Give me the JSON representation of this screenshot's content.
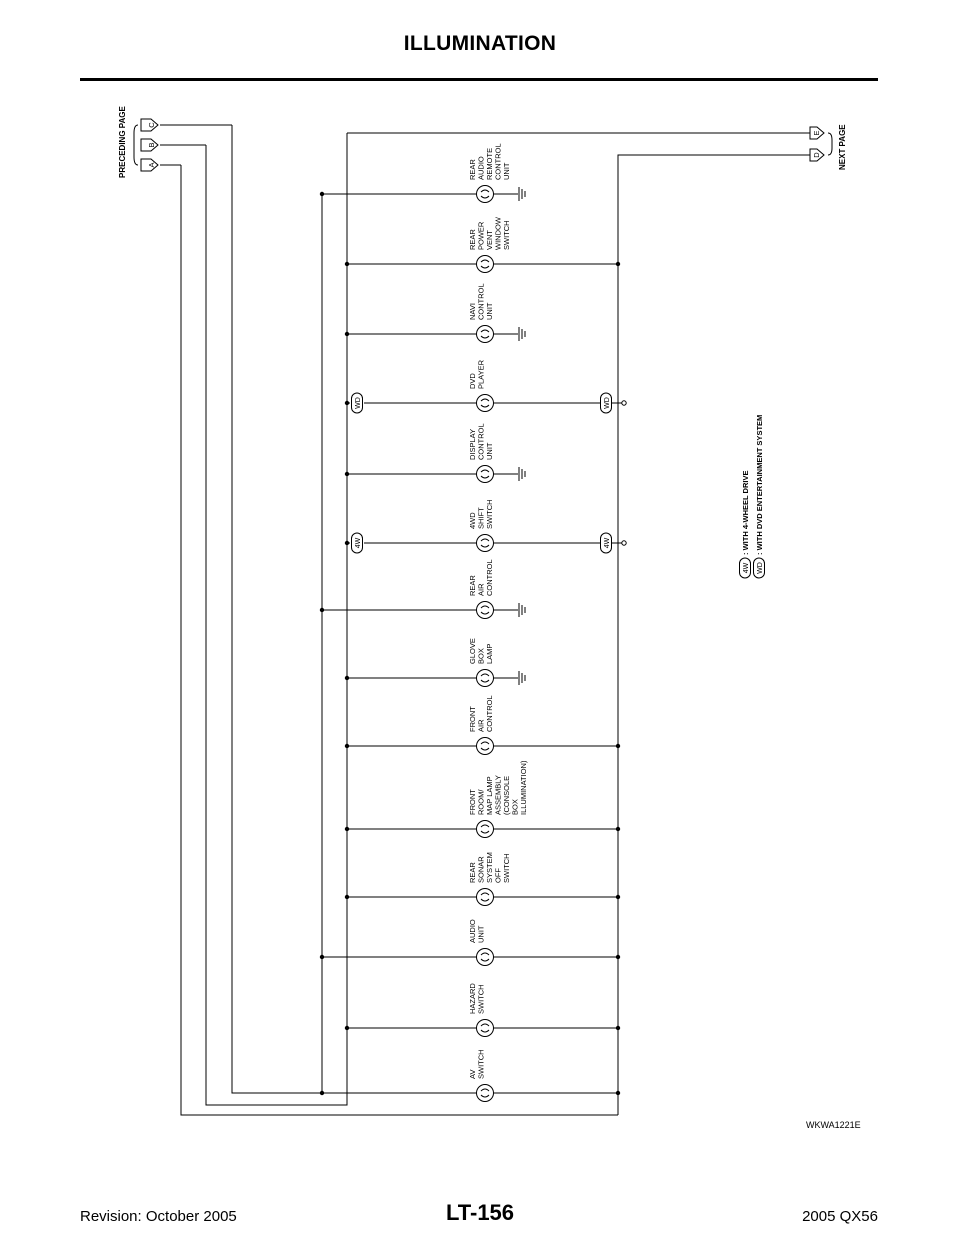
{
  "header": {
    "title": "ILLUMINATION"
  },
  "footer": {
    "revision": "Revision: October 2005",
    "page": "LT-156",
    "model": "2005 QX56"
  },
  "diagram": {
    "preceding_page": "PRECEDING PAGE",
    "next_page": "NEXT PAGE",
    "connectors_in": [
      "C",
      "B",
      "A"
    ],
    "connectors_out": [
      "E",
      "D"
    ],
    "figure_id": "WKWA1221E",
    "components": [
      {
        "lines": [
          "REAR",
          "AUDIO",
          "REMOTE",
          "CONTROL",
          "UNIT"
        ],
        "ground": true
      },
      {
        "lines": [
          "REAR",
          "POWER",
          "VENT",
          "WINDOW",
          "SWITCH"
        ],
        "ground": false
      },
      {
        "lines": [
          "NAVI",
          "CONTROL",
          "UNIT"
        ],
        "ground": true
      },
      {
        "lines": [
          "DVD",
          "PLAYER"
        ],
        "ground": false,
        "tag": "WD"
      },
      {
        "lines": [
          "DISPLAY",
          "CONTROL",
          "UNIT"
        ],
        "ground": true
      },
      {
        "lines": [
          "4WD",
          "SHIFT",
          "SWITCH"
        ],
        "ground": false,
        "tag": "4W"
      },
      {
        "lines": [
          "REAR",
          "AIR",
          "CONTROL"
        ],
        "ground": true
      },
      {
        "lines": [
          "GLOVE",
          "BOX",
          "LAMP"
        ],
        "ground": true
      },
      {
        "lines": [
          "FRONT",
          "AIR",
          "CONTROL"
        ],
        "ground": false
      },
      {
        "lines": [
          "FRONT",
          "ROOM/",
          "MAP LAMP",
          "ASSEMBLY",
          "(CONSOLE",
          "BOX",
          "ILLUMINATION)"
        ],
        "ground": false
      },
      {
        "lines": [
          "REAR",
          "SONAR",
          "SYSTEM",
          "OFF",
          "SWITCH"
        ],
        "ground": false
      },
      {
        "lines": [
          "AUDIO",
          "UNIT"
        ],
        "ground": false
      },
      {
        "lines": [
          "HAZARD",
          "SWITCH"
        ],
        "ground": false
      },
      {
        "lines": [
          "AV",
          "SWITCH"
        ],
        "ground": false
      }
    ],
    "legend": [
      {
        "tag": "4W",
        "text": ": WITH 4-WHEEL DRIVE"
      },
      {
        "tag": "WD",
        "text": ": WITH DVD ENTERTAINMENT SYSTEM"
      }
    ]
  }
}
